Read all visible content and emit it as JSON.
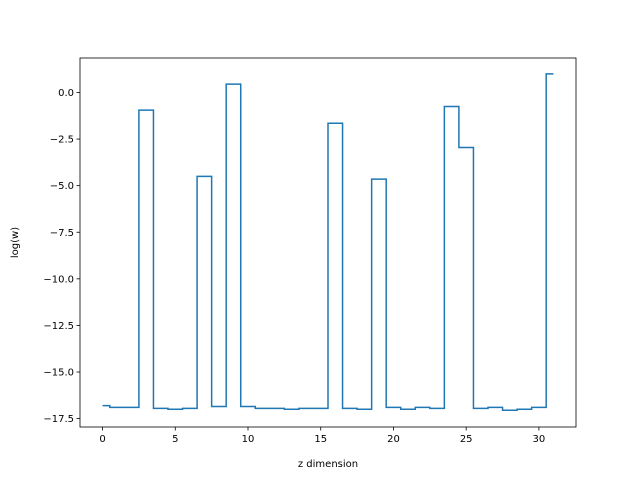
{
  "chart_data": {
    "type": "line",
    "drawstyle": "steps-mid",
    "title": "",
    "xlabel": "z dimension",
    "ylabel": "log(w)",
    "xlim": [
      -1.55,
      32.55
    ],
    "ylim": [
      -17.95,
      1.85
    ],
    "grid": false,
    "legend": "none",
    "x_ticks": [
      0,
      5,
      10,
      15,
      20,
      25,
      30
    ],
    "x_tick_labels": [
      "0",
      "5",
      "10",
      "15",
      "20",
      "25",
      "30"
    ],
    "y_ticks": [
      0.0,
      -2.5,
      -5.0,
      -7.5,
      -10.0,
      -12.5,
      -15.0,
      -17.5
    ],
    "y_tick_labels": [
      "0.0",
      "−2.5",
      "−5.0",
      "−7.5",
      "−10.0",
      "−12.5",
      "−15.0",
      "−17.5"
    ],
    "series": [
      {
        "color": "#1f77b4",
        "x": [
          0,
          1,
          2,
          3,
          4,
          5,
          6,
          7,
          8,
          9,
          10,
          11,
          12,
          13,
          14,
          15,
          16,
          17,
          18,
          19,
          20,
          21,
          22,
          23,
          24,
          25,
          26,
          27,
          28,
          29,
          30,
          31
        ],
        "y": [
          -16.8,
          -16.9,
          -16.9,
          -0.95,
          -16.95,
          -17.0,
          -16.95,
          -4.5,
          -16.85,
          0.45,
          -16.85,
          -16.95,
          -16.95,
          -17.0,
          -16.95,
          -16.95,
          -1.65,
          -16.95,
          -17.0,
          -4.65,
          -16.9,
          -17.0,
          -16.9,
          -16.95,
          -0.75,
          -2.95,
          -16.95,
          -16.9,
          -17.05,
          -17.0,
          -16.9,
          1.0
        ]
      }
    ]
  }
}
